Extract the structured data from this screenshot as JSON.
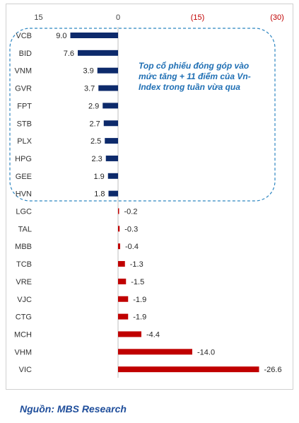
{
  "chart_data": {
    "type": "bar",
    "orientation": "horizontal",
    "x_axis_position": "top",
    "x_axis_reversed": true,
    "xlim": [
      15,
      -30
    ],
    "x_ticks": [
      {
        "value": 15,
        "label": "15"
      },
      {
        "value": 0,
        "label": "0"
      },
      {
        "value": -15,
        "label": "(15)"
      },
      {
        "value": -30,
        "label": "(30)"
      }
    ],
    "categories": [
      "VCB",
      "BID",
      "VNM",
      "GVR",
      "FPT",
      "STB",
      "PLX",
      "HPG",
      "GEE",
      "HVN",
      "LGC",
      "TAL",
      "MBB",
      "TCB",
      "VRE",
      "VJC",
      "CTG",
      "MCH",
      "VHM",
      "VIC"
    ],
    "values": [
      9.0,
      7.6,
      3.9,
      3.7,
      2.9,
      2.7,
      2.5,
      2.3,
      1.9,
      1.8,
      -0.2,
      -0.3,
      -0.4,
      -1.3,
      -1.5,
      -1.9,
      -1.9,
      -4.4,
      -14.0,
      -26.6
    ],
    "value_labels": [
      "9.0",
      "7.6",
      "3.9",
      "3.7",
      "2.9",
      "2.7",
      "2.5",
      "2.3",
      "1.9",
      "1.8",
      "-0.2",
      "-0.3",
      "-0.4",
      "-1.3",
      "-1.5",
      "-1.9",
      "-1.9",
      "-4.4",
      "-14.0",
      "-26.6"
    ],
    "colors": {
      "positive": "#0d2a6b",
      "negative": "#c00000",
      "negative_tick": "#c00000",
      "axis": "#bfbfbf",
      "callout": "#1f6fb4"
    },
    "annotation": "Top cổ phiếu đóng góp vào mức tăng + 11 điểm của Vn-Index trong tuần vừa qua",
    "grid": false,
    "legend": "none"
  },
  "source": "Nguồn: MBS Research"
}
